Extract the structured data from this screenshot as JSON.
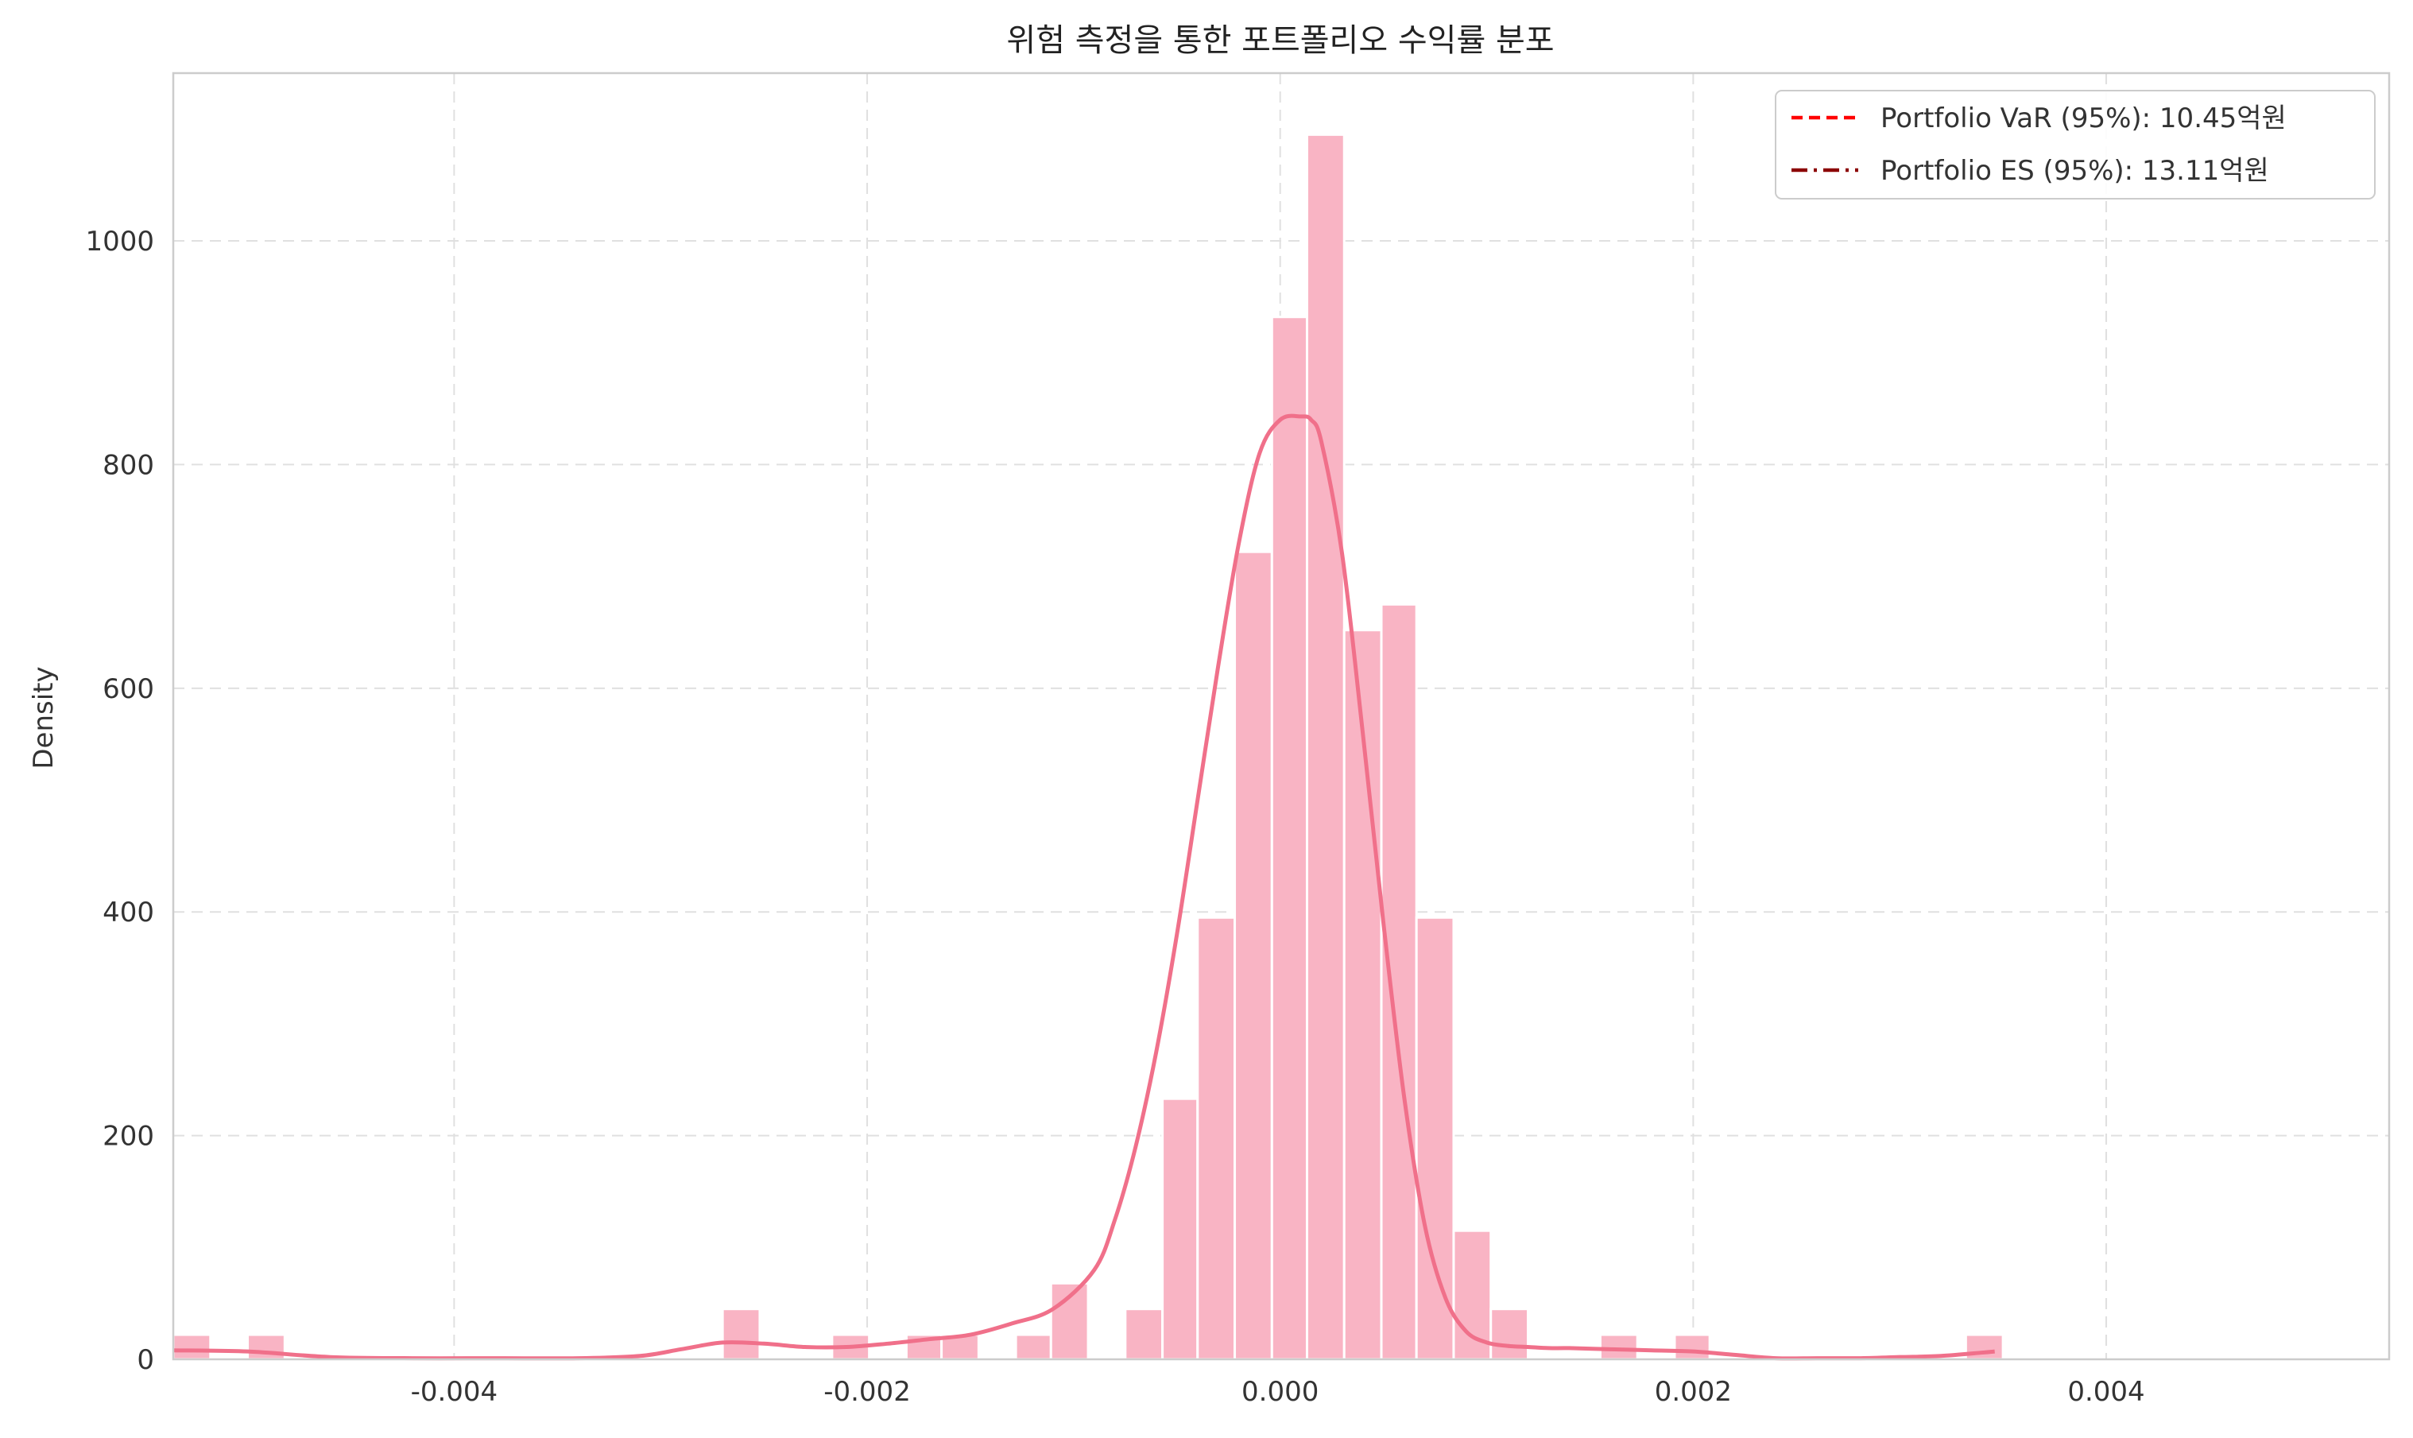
{
  "chart_data": {
    "type": "histogram",
    "title": "위험 측정을 통한 포트폴리오 수익률 분포",
    "xlabel": "",
    "ylabel": "Density",
    "xlim": [
      -0.00536,
      0.00537
    ],
    "ylim": [
      0,
      1150
    ],
    "xticks": [
      -0.004,
      -0.002,
      0.0,
      0.002,
      0.004
    ],
    "xtick_labels": [
      "-0.004",
      "-0.002",
      "0.000",
      "0.002",
      "0.004"
    ],
    "yticks": [
      0,
      200,
      400,
      600,
      800,
      1000
    ],
    "ytick_labels": [
      "0",
      "200",
      "400",
      "600",
      "800",
      "1000"
    ],
    "grid": true,
    "legend_position": "top-right",
    "bin_width": 0.000177,
    "bins": [
      {
        "x0": -0.00536,
        "x1": -0.00518,
        "density": 22
      },
      {
        "x0": -0.005,
        "x1": -0.00482,
        "density": 22
      },
      {
        "x0": -0.0027,
        "x1": -0.00252,
        "density": 45
      },
      {
        "x0": -0.00217,
        "x1": -0.00199,
        "density": 22
      },
      {
        "x0": -0.00181,
        "x1": -0.00164,
        "density": 22
      },
      {
        "x0": -0.00164,
        "x1": -0.00146,
        "density": 22
      },
      {
        "x0": -0.00128,
        "x1": -0.00111,
        "density": 22
      },
      {
        "x0": -0.00111,
        "x1": -0.00093,
        "density": 68
      },
      {
        "x0": -0.00075,
        "x1": -0.00057,
        "density": 45
      },
      {
        "x0": -0.00057,
        "x1": -0.0004,
        "density": 233
      },
      {
        "x0": -0.0004,
        "x1": -0.00022,
        "density": 395
      },
      {
        "x0": -0.00022,
        "x1": -4e-05,
        "density": 722
      },
      {
        "x0": -4e-05,
        "x1": 0.00013,
        "density": 932
      },
      {
        "x0": 0.00013,
        "x1": 0.00031,
        "density": 1095
      },
      {
        "x0": 0.00031,
        "x1": 0.00049,
        "density": 652
      },
      {
        "x0": 0.00049,
        "x1": 0.00066,
        "density": 675
      },
      {
        "x0": 0.00066,
        "x1": 0.00084,
        "density": 395
      },
      {
        "x0": 0.00084,
        "x1": 0.00102,
        "density": 115
      },
      {
        "x0": 0.00102,
        "x1": 0.0012,
        "density": 45
      },
      {
        "x0": 0.00155,
        "x1": 0.00173,
        "density": 22
      },
      {
        "x0": 0.00191,
        "x1": 0.00208,
        "density": 22
      },
      {
        "x0": 0.00332,
        "x1": 0.0035,
        "density": 22
      }
    ],
    "kde": {
      "x": [
        -0.00536,
        -0.005,
        -0.0046,
        -0.0042,
        -0.0038,
        -0.0034,
        -0.0031,
        -0.0029,
        -0.0027,
        -0.0025,
        -0.0023,
        -0.0021,
        -0.0019,
        -0.0017,
        -0.0015,
        -0.0013,
        -0.0011,
        -0.0009,
        -0.0008,
        -0.0007,
        -0.0006,
        -0.0005,
        -0.0004,
        -0.0003,
        -0.0002,
        -0.0001,
        0.0,
        0.0001,
        0.00015,
        0.0002,
        0.0003,
        0.0004,
        0.0005,
        0.0006,
        0.0007,
        0.0008,
        0.0009,
        0.001,
        0.0011,
        0.0012,
        0.0013,
        0.0014,
        0.0016,
        0.0018,
        0.002,
        0.0022,
        0.0024,
        0.0026,
        0.0028,
        0.003,
        0.0032,
        0.0034,
        0.00346
      ],
      "y": [
        8,
        7,
        2,
        1,
        1,
        1,
        3,
        9,
        15,
        14,
        11,
        11,
        14,
        18,
        22,
        32,
        45,
        80,
        125,
        190,
        275,
        380,
        500,
        620,
        730,
        810,
        840,
        843,
        840,
        820,
        720,
        560,
        390,
        235,
        120,
        55,
        25,
        15,
        12,
        11,
        10,
        10,
        9,
        8,
        7,
        4,
        1,
        1,
        1,
        2,
        3,
        6,
        7
      ]
    },
    "series": [
      {
        "name": "Portfolio VaR (95%): 10.45억원",
        "style": "dashed",
        "color": "#ff0000"
      },
      {
        "name": "Portfolio ES (95%): 13.11억원",
        "style": "dashdot",
        "color": "#8b0000"
      }
    ],
    "colors": {
      "bar_fill": "#f9b4c4",
      "kde_line": "#f0708a",
      "grid": "#e0e0e0",
      "axes": "#cccccc",
      "text": "#333333"
    }
  }
}
